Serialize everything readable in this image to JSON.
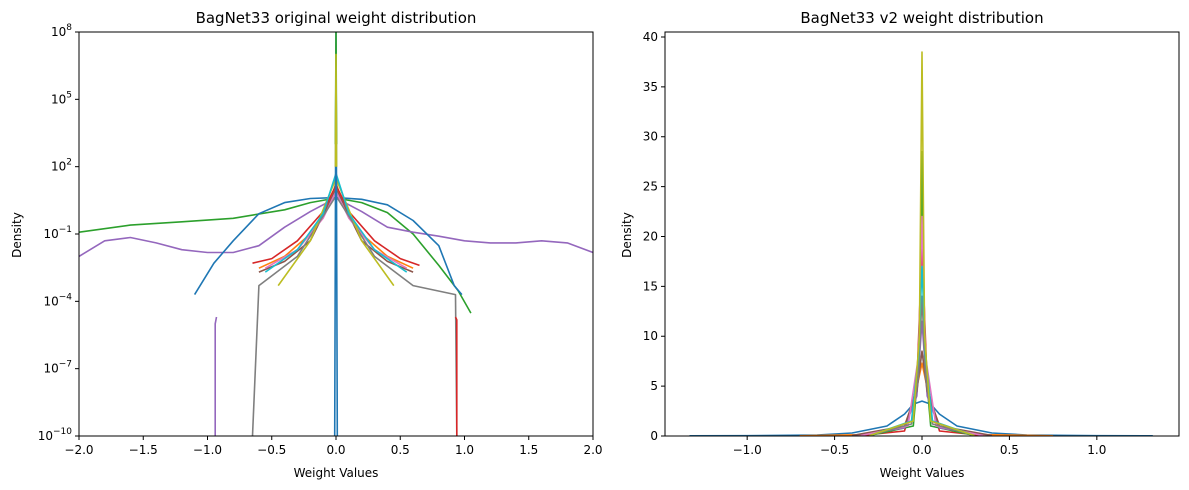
{
  "chart_data": [
    {
      "type": "line",
      "title": "BagNet33 original weight distribution",
      "xlabel": "Weight Values",
      "ylabel": "Density",
      "xlim": [
        -2.0,
        2.0
      ],
      "ylim": [
        1e-10,
        100000000.0
      ],
      "yscale": "log",
      "xticks": [
        {
          "value": -2.0,
          "label": "−2.0"
        },
        {
          "value": -1.5,
          "label": "−1.5"
        },
        {
          "value": -1.0,
          "label": "−1.0"
        },
        {
          "value": -0.5,
          "label": "−0.5"
        },
        {
          "value": 0.0,
          "label": "0.0"
        },
        {
          "value": 0.5,
          "label": "0.5"
        },
        {
          "value": 1.0,
          "label": "1.0"
        },
        {
          "value": 1.5,
          "label": "1.5"
        },
        {
          "value": 2.0,
          "label": "2.0"
        }
      ],
      "yticks": [
        {
          "value": 1e-10,
          "base": "10",
          "exp": "−10"
        },
        {
          "value": 1e-07,
          "base": "10",
          "exp": "−7"
        },
        {
          "value": 0.0001,
          "base": "10",
          "exp": "−4"
        },
        {
          "value": 0.1,
          "base": "10",
          "exp": "−1"
        },
        {
          "value": 100.0,
          "base": "10",
          "exp": "2"
        },
        {
          "value": 100000.0,
          "base": "10",
          "exp": "5"
        },
        {
          "value": 100000000.0,
          "base": "10",
          "exp": "8"
        }
      ],
      "grid": false,
      "series": [
        {
          "color": "#2ca02c",
          "points": [
            [
              -2.0,
              0.12
            ],
            [
              -1.6,
              0.25
            ],
            [
              -1.2,
              0.35
            ],
            [
              -0.8,
              0.5
            ],
            [
              -0.4,
              1.2
            ],
            [
              -0.2,
              2.5
            ],
            [
              0.0,
              4.0
            ],
            [
              0.2,
              2.5
            ],
            [
              0.4,
              0.9
            ],
            [
              0.6,
              0.1
            ],
            [
              0.8,
              0.004
            ],
            [
              0.95,
              0.0003
            ],
            [
              1.05,
              3e-05
            ]
          ]
        },
        {
          "color": "#9467bd",
          "points": [
            [
              -2.0,
              0.01
            ],
            [
              -1.8,
              0.05
            ],
            [
              -1.6,
              0.07
            ],
            [
              -1.4,
              0.04
            ],
            [
              -1.2,
              0.02
            ],
            [
              -1.0,
              0.015
            ],
            [
              -0.8,
              0.015
            ],
            [
              -0.6,
              0.03
            ],
            [
              -0.4,
              0.2
            ],
            [
              -0.2,
              1.0
            ],
            [
              0.0,
              4.0
            ],
            [
              0.2,
              1.0
            ],
            [
              0.4,
              0.2
            ],
            [
              0.6,
              0.12
            ],
            [
              0.8,
              0.08
            ],
            [
              1.0,
              0.05
            ],
            [
              1.2,
              0.04
            ],
            [
              1.4,
              0.04
            ],
            [
              1.6,
              0.05
            ],
            [
              1.8,
              0.04
            ],
            [
              2.0,
              0.015
            ]
          ]
        },
        {
          "color": "#1f77b4",
          "points": [
            [
              -1.1,
              0.0002
            ],
            [
              -0.95,
              0.005
            ],
            [
              -0.8,
              0.05
            ],
            [
              -0.6,
              0.8
            ],
            [
              -0.4,
              2.5
            ],
            [
              -0.2,
              3.8
            ],
            [
              0.0,
              4.2
            ],
            [
              0.2,
              3.5
            ],
            [
              0.4,
              2.0
            ],
            [
              0.6,
              0.4
            ],
            [
              0.8,
              0.03
            ],
            [
              0.92,
              0.0005
            ],
            [
              0.98,
              0.0002
            ]
          ]
        },
        {
          "color": "#ff7f0e",
          "points": [
            [
              -0.6,
              0.003
            ],
            [
              -0.4,
              0.01
            ],
            [
              -0.2,
              0.1
            ],
            [
              -0.05,
              2.0
            ],
            [
              0.0,
              20.0
            ],
            [
              0.05,
              2.0
            ],
            [
              0.2,
              0.1
            ],
            [
              0.4,
              0.01
            ],
            [
              0.6,
              0.003
            ]
          ]
        },
        {
          "color": "#d62728",
          "points": [
            [
              -0.65,
              0.005
            ],
            [
              -0.5,
              0.008
            ],
            [
              -0.3,
              0.05
            ],
            [
              -0.1,
              1.0
            ],
            [
              0.0,
              15.0
            ],
            [
              0.1,
              1.0
            ],
            [
              0.3,
              0.05
            ],
            [
              0.5,
              0.008
            ],
            [
              0.65,
              0.004
            ]
          ]
        },
        {
          "color": "#8c564b",
          "points": [
            [
              -0.6,
              0.002
            ],
            [
              -0.4,
              0.006
            ],
            [
              -0.2,
              0.05
            ],
            [
              0.0,
              10.0
            ],
            [
              0.2,
              0.05
            ],
            [
              0.4,
              0.006
            ],
            [
              0.6,
              0.002
            ]
          ]
        },
        {
          "color": "#e377c2",
          "points": [
            [
              -0.55,
              0.003
            ],
            [
              -0.3,
              0.02
            ],
            [
              -0.1,
              0.5
            ],
            [
              0.0,
              8.0
            ],
            [
              0.1,
              0.5
            ],
            [
              0.3,
              0.02
            ],
            [
              0.55,
              0.003
            ]
          ]
        },
        {
          "color": "#7f7f7f",
          "points": [
            [
              -0.65,
              1e-10
            ],
            [
              -0.6,
              0.0005
            ],
            [
              -0.3,
              0.01
            ],
            [
              0.0,
              5.0
            ],
            [
              0.3,
              0.01
            ],
            [
              0.6,
              0.0005
            ],
            [
              0.93,
              0.0002
            ],
            [
              0.94,
              1e-10
            ]
          ]
        },
        {
          "color": "#bcbd22",
          "points": [
            [
              -0.45,
              0.0005
            ],
            [
              -0.2,
              0.05
            ],
            [
              0.0,
              30.0
            ],
            [
              0.2,
              0.05
            ],
            [
              0.45,
              0.0005
            ]
          ]
        },
        {
          "color": "#17becf",
          "points": [
            [
              -0.55,
              0.002
            ],
            [
              -0.3,
              0.02
            ],
            [
              -0.1,
              0.8
            ],
            [
              0.0,
              50.0
            ],
            [
              0.1,
              0.8
            ],
            [
              0.3,
              0.02
            ],
            [
              0.55,
              0.002
            ]
          ]
        },
        {
          "color": "#9467bd",
          "points": [
            [
              -0.94,
              1e-10
            ],
            [
              -0.94,
              1e-05
            ],
            [
              -0.93,
              2e-05
            ]
          ]
        },
        {
          "color": "#d62728",
          "points": [
            [
              0.93,
              2e-05
            ],
            [
              0.94,
              1.5e-05
            ],
            [
              0.94,
              1e-10
            ]
          ]
        },
        {
          "color": "#1f77b4",
          "points": [
            [
              -0.01,
              1e-10
            ],
            [
              0.0,
              100000000.0
            ],
            [
              0.01,
              1e-10
            ]
          ]
        },
        {
          "color": "#2ca02c",
          "points": [
            [
              -0.005,
              1000.0
            ],
            [
              0.0,
              100000000.0
            ],
            [
              0.005,
              1000.0
            ]
          ]
        },
        {
          "color": "#bcbd22",
          "points": [
            [
              -0.005,
              100.0
            ],
            [
              0.0,
              10000000.0
            ],
            [
              0.005,
              100.0
            ]
          ]
        }
      ]
    },
    {
      "type": "line",
      "title": "BagNet33 v2 weight distribution",
      "xlabel": "Weight Values",
      "ylabel": "Density",
      "xlim": [
        -1.47,
        1.47
      ],
      "ylim": [
        0,
        40.5
      ],
      "yscale": "linear",
      "xticks": [
        {
          "value": -1.0,
          "label": "−1.0"
        },
        {
          "value": -0.5,
          "label": "−0.5"
        },
        {
          "value": 0.0,
          "label": "0.0"
        },
        {
          "value": 0.5,
          "label": "0.5"
        },
        {
          "value": 1.0,
          "label": "1.0"
        }
      ],
      "yticks": [
        {
          "value": 0,
          "label": "0"
        },
        {
          "value": 5,
          "label": "5"
        },
        {
          "value": 10,
          "label": "10"
        },
        {
          "value": 15,
          "label": "15"
        },
        {
          "value": 20,
          "label": "20"
        },
        {
          "value": 25,
          "label": "25"
        },
        {
          "value": 30,
          "label": "30"
        },
        {
          "value": 35,
          "label": "35"
        },
        {
          "value": 40,
          "label": "40"
        }
      ],
      "grid": false,
      "series": [
        {
          "color": "#1f77b4",
          "points": [
            [
              -1.33,
              0.02
            ],
            [
              -1.0,
              0.03
            ],
            [
              -0.6,
              0.1
            ],
            [
              -0.4,
              0.3
            ],
            [
              -0.2,
              1.0
            ],
            [
              -0.1,
              2.2
            ],
            [
              -0.05,
              3.2
            ],
            [
              0.0,
              3.5
            ],
            [
              0.05,
              3.2
            ],
            [
              0.1,
              2.2
            ],
            [
              0.2,
              1.0
            ],
            [
              0.4,
              0.3
            ],
            [
              0.6,
              0.1
            ],
            [
              1.0,
              0.03
            ],
            [
              1.32,
              0.02
            ]
          ]
        },
        {
          "color": "#ff7f0e",
          "points": [
            [
              -0.7,
              0.02
            ],
            [
              -0.3,
              0.15
            ],
            [
              -0.1,
              1.0
            ],
            [
              -0.04,
              4.0
            ],
            [
              0.0,
              7.3
            ],
            [
              0.04,
              4.0
            ],
            [
              0.1,
              1.0
            ],
            [
              0.3,
              0.15
            ],
            [
              0.75,
              0.02
            ]
          ]
        },
        {
          "color": "#d62728",
          "points": [
            [
              -0.35,
              0.05
            ],
            [
              -0.1,
              0.5
            ],
            [
              -0.03,
              5.0
            ],
            [
              0.0,
              19.0
            ],
            [
              0.03,
              5.0
            ],
            [
              0.1,
              0.5
            ],
            [
              0.35,
              0.05
            ]
          ]
        },
        {
          "color": "#2ca02c",
          "points": [
            [
              -0.3,
              0.05
            ],
            [
              -0.05,
              1.0
            ],
            [
              -0.015,
              8.0
            ],
            [
              0.0,
              28.5
            ],
            [
              0.015,
              8.0
            ],
            [
              0.05,
              1.0
            ],
            [
              0.3,
              0.05
            ]
          ]
        },
        {
          "color": "#9467bd",
          "points": [
            [
              -0.4,
              0.05
            ],
            [
              -0.1,
              0.8
            ],
            [
              -0.03,
              4.0
            ],
            [
              0.0,
              11.5
            ],
            [
              0.03,
              4.0
            ],
            [
              0.1,
              0.8
            ],
            [
              0.4,
              0.05
            ]
          ]
        },
        {
          "color": "#8c564b",
          "points": [
            [
              -0.4,
              0.05
            ],
            [
              -0.1,
              1.0
            ],
            [
              -0.03,
              4.5
            ],
            [
              0.0,
              8.5
            ],
            [
              0.03,
              4.5
            ],
            [
              0.1,
              1.0
            ],
            [
              0.4,
              0.05
            ]
          ]
        },
        {
          "color": "#e377c2",
          "points": [
            [
              -0.35,
              0.05
            ],
            [
              -0.08,
              1.0
            ],
            [
              -0.02,
              8.0
            ],
            [
              0.0,
              22.0
            ],
            [
              0.02,
              8.0
            ],
            [
              0.08,
              1.0
            ],
            [
              0.35,
              0.05
            ]
          ]
        },
        {
          "color": "#7f7f7f",
          "points": [
            [
              -0.3,
              0.05
            ],
            [
              -0.06,
              1.2
            ],
            [
              -0.02,
              6.0
            ],
            [
              0.0,
              14.0
            ],
            [
              0.02,
              6.0
            ],
            [
              0.06,
              1.2
            ],
            [
              0.3,
              0.05
            ]
          ]
        },
        {
          "color": "#17becf",
          "points": [
            [
              -0.3,
              0.05
            ],
            [
              -0.06,
              1.5
            ],
            [
              -0.02,
              8.0
            ],
            [
              0.0,
              17.0
            ],
            [
              0.02,
              8.0
            ],
            [
              0.06,
              1.5
            ],
            [
              0.3,
              0.05
            ]
          ]
        },
        {
          "color": "#bcbd22",
          "points": [
            [
              -0.3,
              0.05
            ],
            [
              -0.05,
              1.5
            ],
            [
              -0.015,
              10.0
            ],
            [
              0.0,
              38.5
            ],
            [
              0.015,
              10.0
            ],
            [
              0.05,
              1.5
            ],
            [
              0.3,
              0.05
            ]
          ]
        }
      ]
    }
  ]
}
